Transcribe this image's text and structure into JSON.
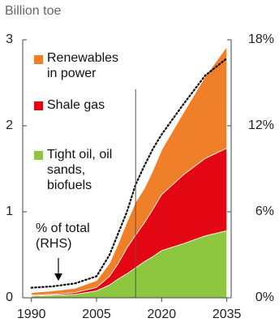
{
  "chart_data": {
    "type": "stacked_area",
    "ylabel": "Billion toe",
    "x": [
      1990,
      1995,
      2000,
      2005,
      2008,
      2010,
      2012,
      2014,
      2016,
      2018,
      2020,
      2025,
      2030,
      2035
    ],
    "series": [
      {
        "name": "Tight oil, oil sands, biofuels",
        "color": "#8dc63f",
        "values": [
          0.02,
          0.03,
          0.04,
          0.08,
          0.15,
          0.22,
          0.28,
          0.35,
          0.42,
          0.48,
          0.55,
          0.63,
          0.72,
          0.78
        ]
      },
      {
        "name": "Shale gas",
        "color": "#e30613",
        "values": [
          0.01,
          0.01,
          0.02,
          0.04,
          0.1,
          0.18,
          0.3,
          0.38,
          0.45,
          0.55,
          0.65,
          0.8,
          0.9,
          0.96
        ]
      },
      {
        "name": "Renewables in power",
        "color": "#f07f2a",
        "values": [
          0.03,
          0.04,
          0.05,
          0.08,
          0.15,
          0.23,
          0.3,
          0.38,
          0.4,
          0.45,
          0.52,
          0.72,
          0.95,
          1.18
        ]
      },
      {
        "name": "% of total (RHS)",
        "color": "#000000",
        "axis": "y2",
        "style": "dotted",
        "values": [
          0.7,
          0.8,
          1.0,
          1.5,
          3.0,
          4.5,
          6.0,
          7.9,
          9.2,
          10.4,
          11.4,
          13.5,
          15.5,
          16.7
        ]
      }
    ],
    "marker_x": 2014,
    "xlim": [
      1988,
      2036
    ],
    "xticks": [
      1990,
      2005,
      2020,
      2035
    ],
    "ylim": [
      0,
      3
    ],
    "yticks": [
      0,
      1,
      2,
      3
    ],
    "y2lim": [
      0,
      18
    ],
    "y2ticks": [
      {
        "value": 0,
        "label": "0%"
      },
      {
        "value": 6,
        "label": "6%"
      },
      {
        "value": 12,
        "label": "12%"
      },
      {
        "value": 18,
        "label": "18%"
      }
    ],
    "grid": false
  }
}
